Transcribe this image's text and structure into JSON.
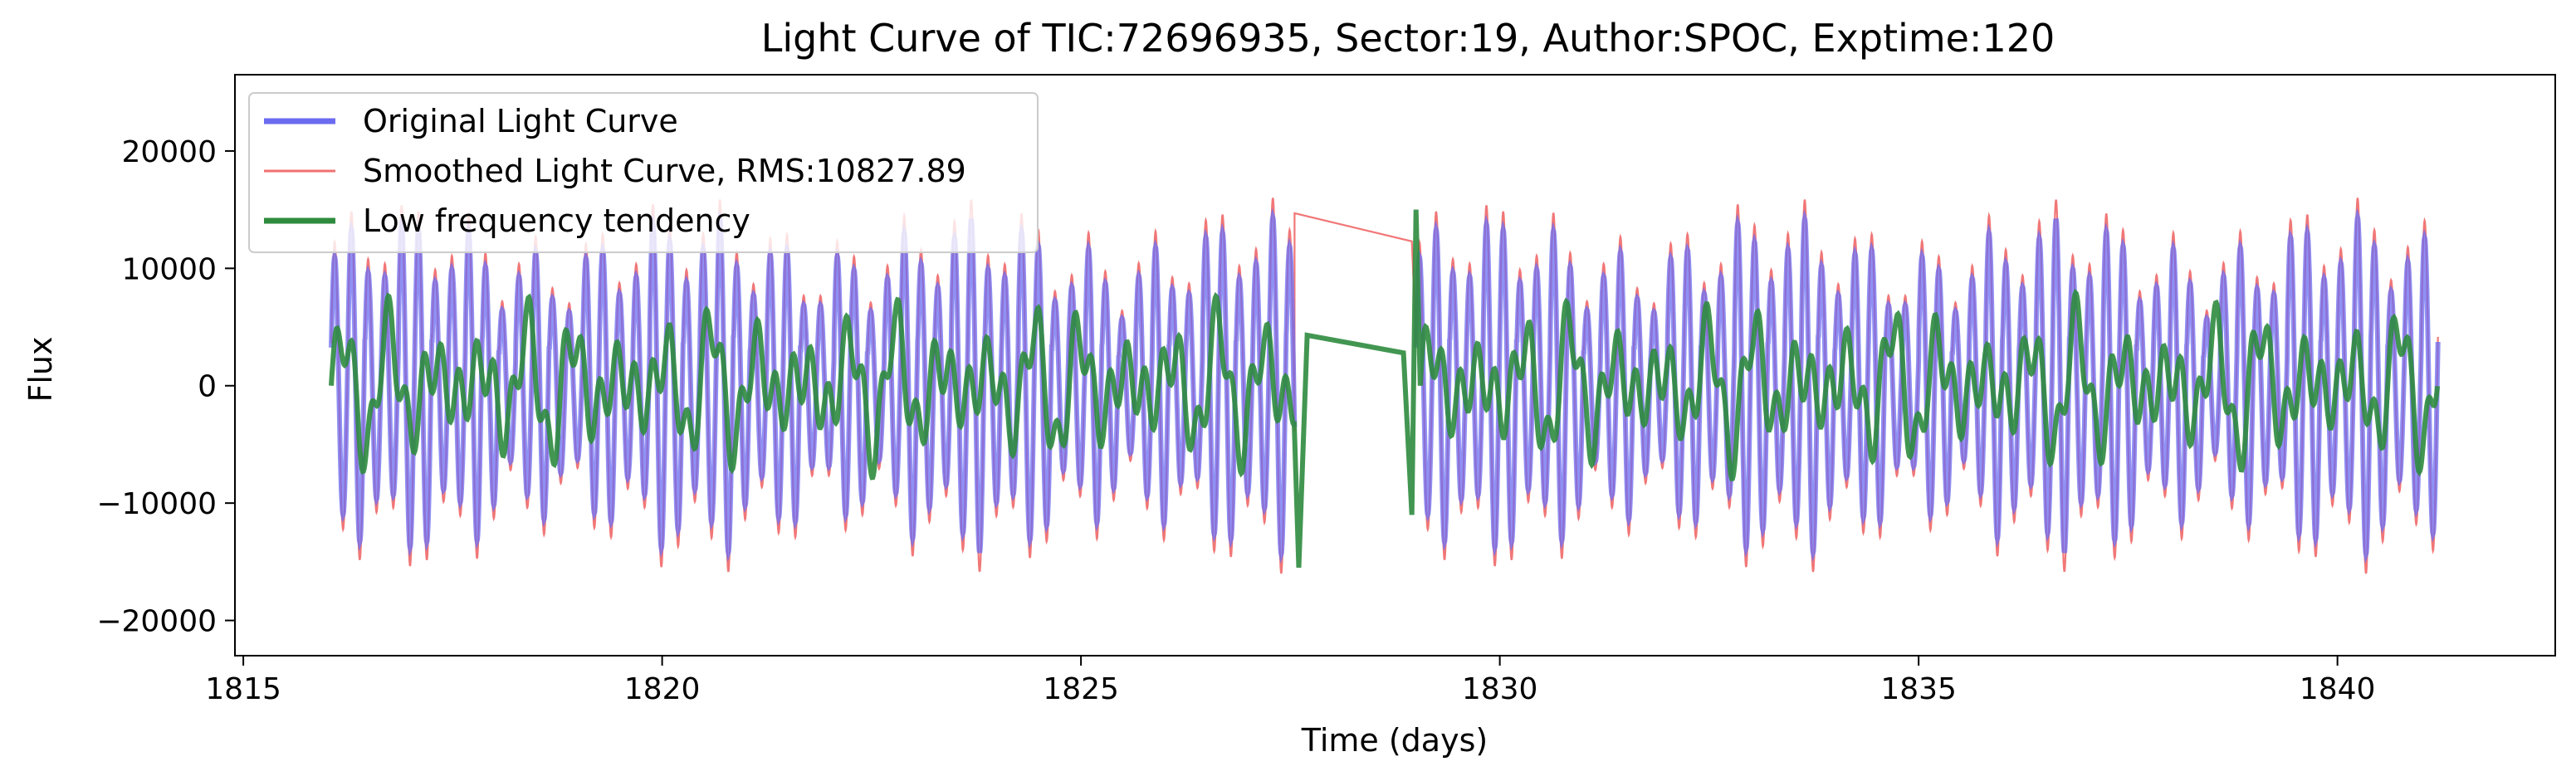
{
  "chart_data": {
    "type": "line",
    "title": "Light Curve of TIC:72696935, Sector:19, Author:SPOC, Exptime:120",
    "xlabel": "Time (days)",
    "ylabel": "Flux",
    "xlim": [
      1814.9,
      1842.6
    ],
    "ylim": [
      -23000,
      26500
    ],
    "x_ticks": [
      1815,
      1820,
      1825,
      1830,
      1835,
      1840
    ],
    "y_ticks": [
      -20000,
      -10000,
      0,
      10000,
      20000
    ],
    "x_tick_labels": [
      "1815",
      "1820",
      "1825",
      "1830",
      "1835",
      "1840"
    ],
    "y_tick_labels": [
      "−20000",
      "−10000",
      "0",
      "10000",
      "20000"
    ],
    "grid": false,
    "legend_position": "top-left",
    "series": [
      {
        "name": "Original Light Curve",
        "color": "#6b6bf0",
        "segments": [
          [
            1816.05,
            1827.55
          ],
          [
            1829.0,
            1841.2
          ]
        ],
        "amplitude": 13000,
        "period_days": 0.2
      },
      {
        "name": "Smoothed Light Curve, RMS:10827.89",
        "color": "#f07070",
        "segments": [
          [
            1816.05,
            1841.2
          ]
        ],
        "amplitude": 14500,
        "period_days": 0.2,
        "gap_points": [
          [
            1827.55,
            14700
          ],
          [
            1828.95,
            12300
          ]
        ]
      },
      {
        "name": "Low frequency tendency",
        "color": "#2e8b3e",
        "segments": [
          [
            1816.05,
            1841.2
          ]
        ],
        "gap_points": [
          [
            1827.6,
            -15500
          ],
          [
            1827.7,
            4300
          ],
          [
            1828.85,
            2800
          ],
          [
            1828.95,
            -11000
          ],
          [
            1829.0,
            15000
          ]
        ]
      }
    ]
  }
}
